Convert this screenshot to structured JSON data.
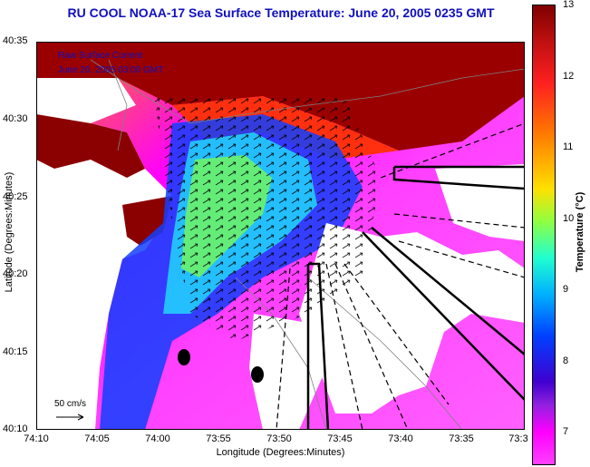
{
  "title": "RU COOL  NOAA-17  Sea Surface Temperature:  June 20, 2005 0235 GMT",
  "legend": {
    "line1": "Raw Surface Current",
    "line2": "June 20, 2005 03:00 GMT"
  },
  "scale_label": "50 cm/s",
  "y_axis": {
    "title": "Latitude (Degrees:Minutes)",
    "ticks": [
      "40:35",
      "40:30",
      "40:25",
      "40:20",
      "40:15",
      "40:10"
    ]
  },
  "x_axis": {
    "title": "Longitude (Degrees:Minutes)",
    "ticks": [
      "74:10",
      "74:05",
      "74:00",
      "73:55",
      "73:50",
      "73:45",
      "73:40",
      "73:35",
      "73:3"
    ]
  },
  "colorbar": {
    "title": "Temperature (°C)",
    "ticks": [
      "13",
      "12",
      "11",
      "10",
      "9",
      "8",
      "7"
    ]
  },
  "colors": {
    "title": "#1010c0",
    "land": "#ffffff",
    "warm": "#8b0000"
  }
}
